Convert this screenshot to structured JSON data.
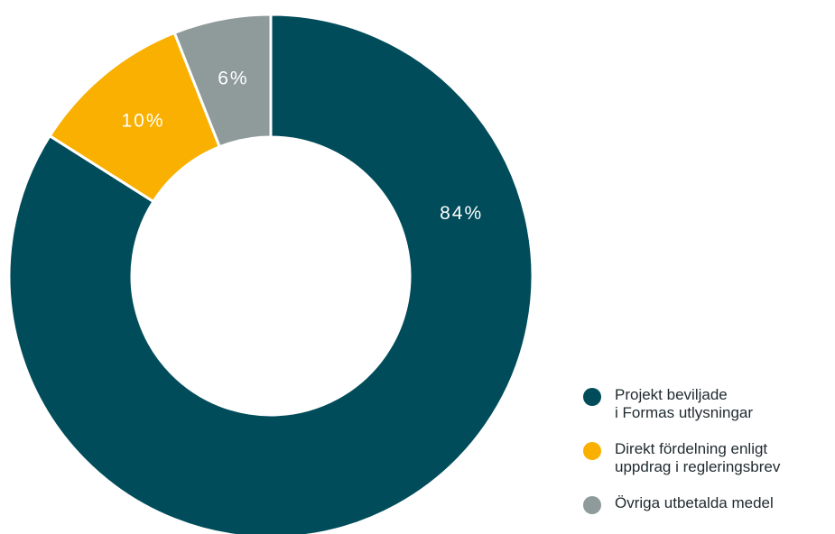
{
  "chart_data": {
    "type": "donut",
    "categories": [
      "Projekt beviljade\ni Formas utlysningar",
      "Direkt fördelning enligt\nuppdrag i regleringsbrev",
      "Övriga utbetalda medel"
    ],
    "values": [
      84,
      10,
      6
    ],
    "value_labels": [
      "84%",
      "10%",
      "6%"
    ],
    "colors": [
      "#004c5a",
      "#f9b000",
      "#8f9a9a"
    ],
    "legend": "bottom-right"
  }
}
